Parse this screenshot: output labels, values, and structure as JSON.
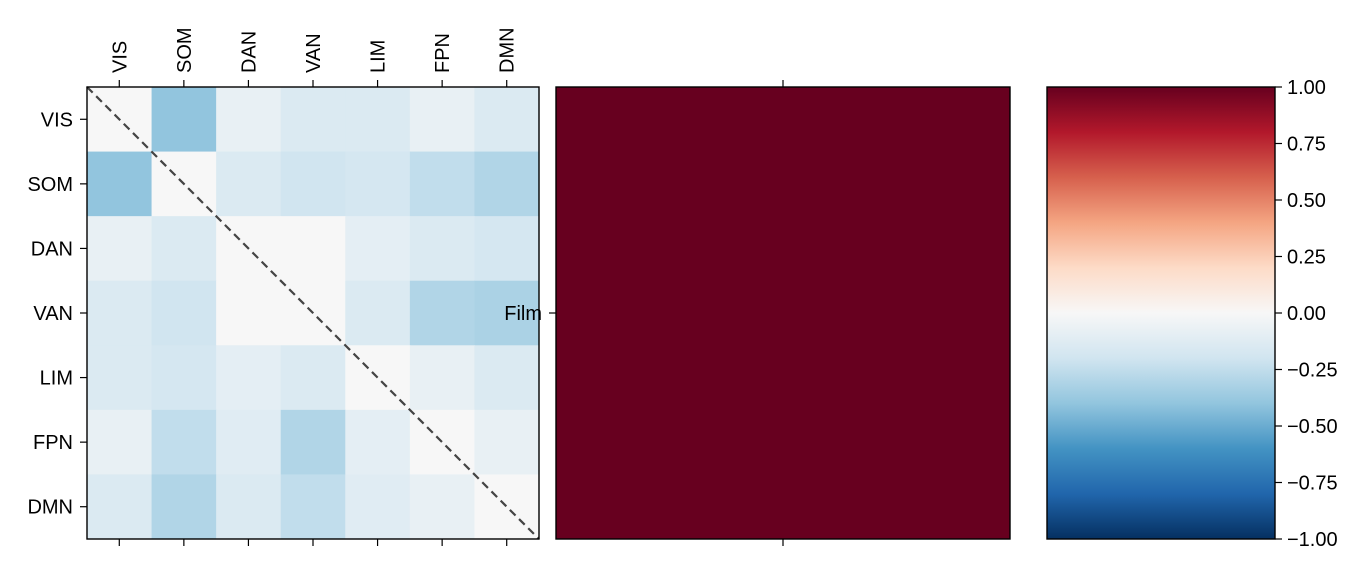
{
  "chart_data": [
    {
      "type": "heatmap",
      "networks": [
        "VIS",
        "SOM",
        "DAN",
        "VAN",
        "LIM",
        "FPN",
        "DMN"
      ],
      "matrix": [
        [
          0.0,
          -0.4,
          -0.08,
          -0.15,
          -0.15,
          -0.08,
          -0.15
        ],
        [
          -0.4,
          0.0,
          -0.15,
          -0.2,
          -0.18,
          -0.25,
          -0.3
        ],
        [
          -0.08,
          -0.15,
          0.0,
          0.0,
          -0.1,
          -0.15,
          -0.18
        ],
        [
          -0.15,
          -0.2,
          0.0,
          0.0,
          -0.15,
          -0.3,
          -0.32
        ],
        [
          -0.15,
          -0.18,
          -0.1,
          -0.15,
          0.0,
          -0.08,
          -0.15
        ],
        [
          -0.08,
          -0.25,
          -0.12,
          -0.3,
          -0.1,
          0.0,
          -0.08
        ],
        [
          -0.15,
          -0.3,
          -0.15,
          -0.25,
          -0.12,
          -0.08,
          0.0
        ]
      ],
      "diagonal_line": "dashed",
      "vmin": -1.0,
      "vmax": 1.0
    },
    {
      "type": "heatmap",
      "y_tick_labels": [
        "Film"
      ],
      "value": 1.0
    },
    {
      "type": "colorbar",
      "colormap": "RdBu_r",
      "ticks": [
        "1.00",
        "0.75",
        "0.50",
        "0.25",
        "0.00",
        "−0.25",
        "−0.50",
        "−0.75",
        "−1.00"
      ],
      "tick_values": [
        1.0,
        0.75,
        0.5,
        0.25,
        0.0,
        -0.25,
        -0.5,
        -0.75,
        -1.0
      ],
      "range": [
        -1.0,
        1.0
      ]
    }
  ]
}
